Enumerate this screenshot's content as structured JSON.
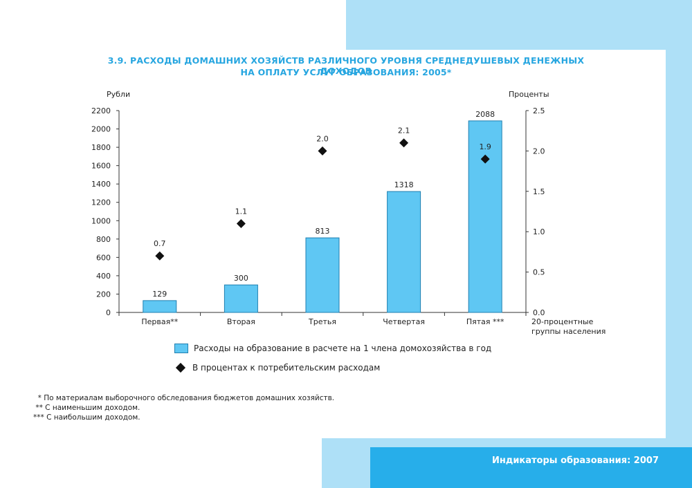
{
  "title": {
    "line1": "3.9. РАСХОДЫ ДОМАШНИХ ХОЗЯЙСТВ РАЗЛИЧНОГО УРОВНЯ СРЕДНЕДУШЕВЫХ ДЕНЕЖНЫХ ДОХОДОВ",
    "line2": "НА ОПЛАТУ УСЛУГ ОБРАЗОВАНИЯ: 2005*"
  },
  "chart_data": {
    "type": "bar",
    "categories": [
      "Первая**",
      "Вторая",
      "Третья",
      "Четвертая",
      "Пятая ***"
    ],
    "series": [
      {
        "name": "Расходы на образование в расчете на 1 члена домохозяйства в год",
        "type": "bar",
        "axis": "left",
        "values": [
          129,
          300,
          813,
          1318,
          2088
        ],
        "labels": [
          "129",
          "300",
          "813",
          "1318",
          "2088"
        ]
      },
      {
        "name": "В процентах к потребительским расходам",
        "type": "scatter",
        "axis": "right",
        "marker": "diamond",
        "values": [
          0.7,
          1.1,
          2.0,
          2.1,
          1.9
        ],
        "labels": [
          "0.7",
          "1.1",
          "2.0",
          "2.1",
          "1.9"
        ]
      }
    ],
    "ylabel_left": "Рубли",
    "ylabel_right": "Проценты",
    "xlabel": "20-процентные группы населения",
    "ylim_left": [
      0,
      2200
    ],
    "yticks_left": [
      "0",
      "200",
      "400",
      "600",
      "800",
      "1000",
      "1200",
      "1400",
      "1600",
      "1800",
      "2000",
      "2200"
    ],
    "ylim_right": [
      0,
      2.5
    ],
    "yticks_right": [
      "0.0",
      "0.5",
      "1.0",
      "1.5",
      "2.0",
      "2.5"
    ],
    "grid": false,
    "legend_position": "bottom",
    "colors": {
      "bar_fill": "#5fc7f3",
      "bar_stroke": "#1f7fb0",
      "marker": "#111111",
      "axis": "#333333"
    }
  },
  "xlabel_lines": [
    "20-процентные",
    "группы населения"
  ],
  "footnotes": [
    "  * По материалам выборочного обследования бюджетов домашних хозяйств.",
    " ** С наименьшим доходом.",
    "*** С наибольшим доходом."
  ],
  "footer": "Индикаторы образования: 2007",
  "colors": {
    "title": "#27a6e0",
    "light_band": "#aee0f7",
    "dark_band": "#27aeea"
  }
}
